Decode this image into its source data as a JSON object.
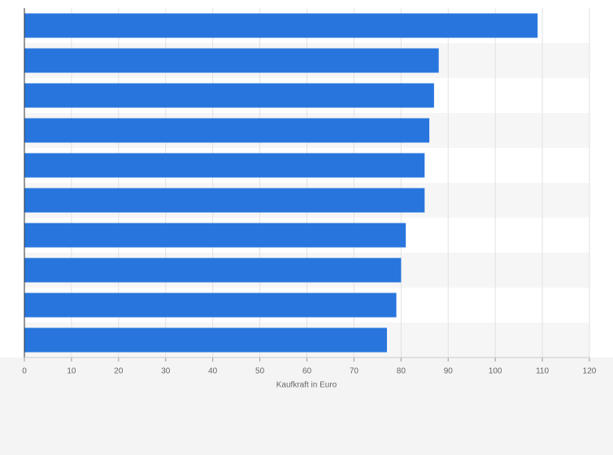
{
  "chart_data": {
    "type": "hbar",
    "categories": [
      null,
      null,
      null,
      null,
      null,
      null,
      null,
      null,
      null,
      null
    ],
    "values": [
      109,
      88,
      87,
      86,
      85,
      85,
      81,
      80,
      79,
      77
    ],
    "color": "#2876dd",
    "xlabel": "Kaufkraft in Euro",
    "xlim": [
      0,
      120
    ],
    "xticks": [
      0,
      10,
      20,
      30,
      40,
      50,
      60,
      70,
      80,
      90,
      100,
      110,
      120
    ],
    "grid": true
  }
}
